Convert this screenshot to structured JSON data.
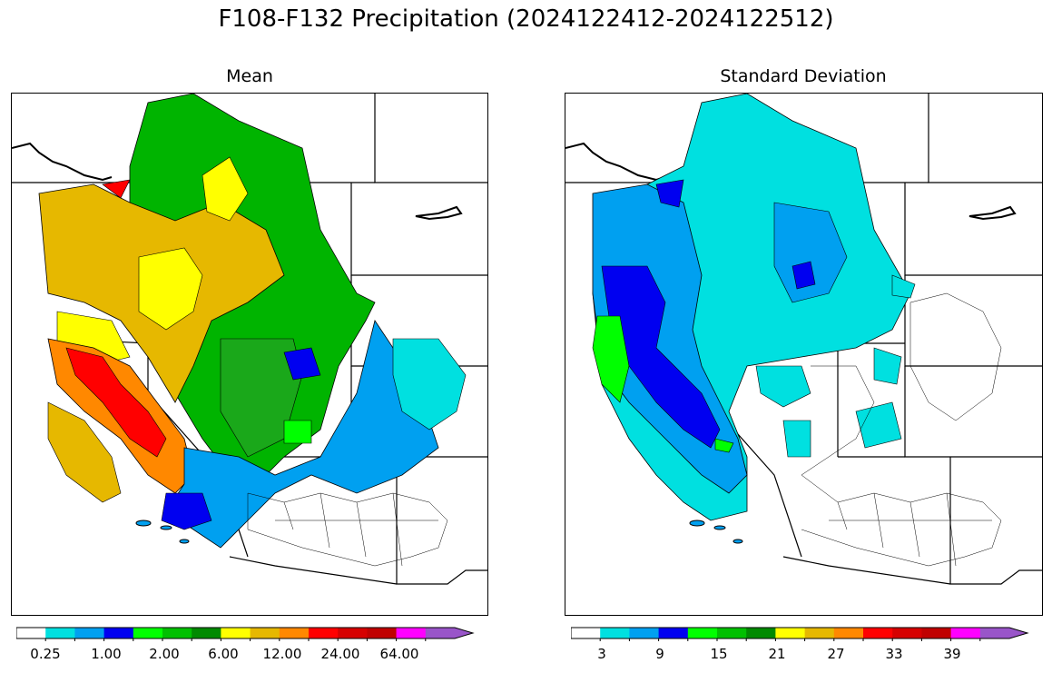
{
  "figure": {
    "title": "F108-F132 Precipitation (2024122412-2024122512)"
  },
  "panels": [
    {
      "id": "mean",
      "title": "Mean",
      "colorbar": {
        "colors": [
          "#ffffff",
          "#00e0e0",
          "#00a0f0",
          "#0000f0",
          "#00ff00",
          "#00c000",
          "#008a00",
          "#ffff00",
          "#e6b800",
          "#ff8800",
          "#ff0000",
          "#d60000",
          "#c00000",
          "#ff00ff",
          "#9955c9"
        ],
        "tick_labels": [
          "0.25",
          "1.00",
          "2.00",
          "6.00",
          "12.00",
          "24.00",
          "64.00"
        ],
        "extend": "max"
      }
    },
    {
      "id": "stddev",
      "title": "Standard Deviation",
      "colorbar": {
        "colors": [
          "#ffffff",
          "#00e0e0",
          "#00a0f0",
          "#0000f0",
          "#00ff00",
          "#00c000",
          "#008a00",
          "#ffff00",
          "#e6b800",
          "#ff8800",
          "#ff0000",
          "#d60000",
          "#c00000",
          "#ff00ff",
          "#9955c9"
        ],
        "tick_labels": [
          "3",
          "9",
          "15",
          "21",
          "27",
          "33",
          "39"
        ],
        "extend": "max"
      }
    }
  ]
}
